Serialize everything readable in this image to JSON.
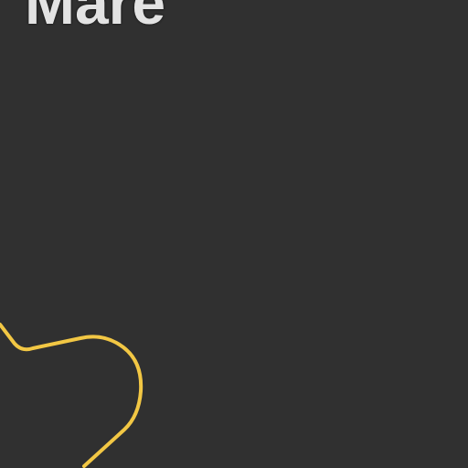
{
  "map": {
    "place_label": "Mare",
    "colors": {
      "background": "#303030",
      "label_text": "#e3e3e3",
      "route_line": "#f2c744"
    }
  }
}
